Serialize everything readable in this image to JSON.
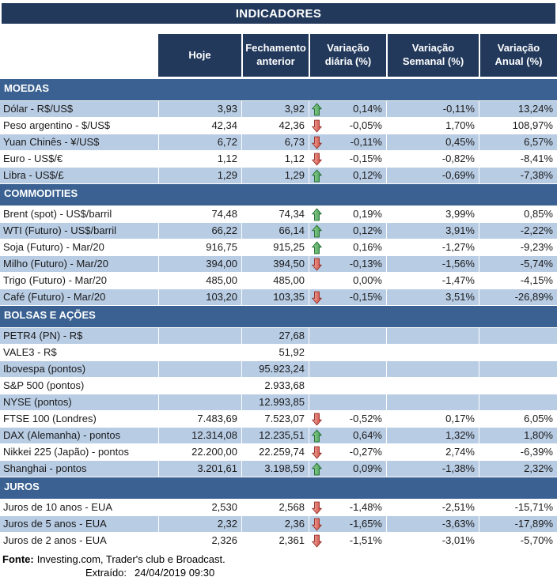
{
  "title": "INDICADORES",
  "columns": [
    "Hoje",
    "Fechamento anterior",
    "Variação diária (%)",
    "Variação Semanal (%)",
    "Variação Anual (%)"
  ],
  "colors": {
    "header_navy": "#22395C",
    "section_blue": "#3A6191",
    "row_shaded": "#B8CCE4",
    "text_dark": "#1A1A1A",
    "arrow_up_light": "#9BD49B",
    "arrow_up": "#3C9A4C",
    "arrow_up_border": "#1F6B30",
    "arrow_down_light": "#F2AFA8",
    "arrow_down": "#CC4437",
    "arrow_down_border": "#932F28"
  },
  "sections": [
    {
      "name": "MOEDAS",
      "first_row_shaded": true,
      "rows": [
        {
          "label": "Dólar - R$/US$",
          "hoje": "3,93",
          "fechamento": "3,92",
          "arrow": "up",
          "var_diaria": "0,14%",
          "var_semanal": "-0,11%",
          "var_anual": "13,24%"
        },
        {
          "label": "Peso argentino - $/US$",
          "hoje": "42,34",
          "fechamento": "42,36",
          "arrow": "down",
          "var_diaria": "-0,05%",
          "var_semanal": "1,70%",
          "var_anual": "108,97%"
        },
        {
          "label": "Yuan Chinês - ¥/US$",
          "hoje": "6,72",
          "fechamento": "6,73",
          "arrow": "down",
          "var_diaria": "-0,11%",
          "var_semanal": "0,45%",
          "var_anual": "6,57%"
        },
        {
          "label": "Euro - US$/€",
          "hoje": "1,12",
          "fechamento": "1,12",
          "arrow": "down",
          "var_diaria": "-0,15%",
          "var_semanal": "-0,82%",
          "var_anual": "-8,41%"
        },
        {
          "label": "Libra - US$/£",
          "hoje": "1,29",
          "fechamento": "1,29",
          "arrow": "up",
          "var_diaria": "0,12%",
          "var_semanal": "-0,69%",
          "var_anual": "-7,38%"
        }
      ]
    },
    {
      "name": "COMMODITIES",
      "first_row_shaded": false,
      "rows": [
        {
          "label": "Brent (spot) - US$/barril",
          "hoje": "74,48",
          "fechamento": "74,34",
          "arrow": "up",
          "var_diaria": "0,19%",
          "var_semanal": "3,99%",
          "var_anual": "0,85%"
        },
        {
          "label": "WTI (Futuro) - US$/barril",
          "hoje": "66,22",
          "fechamento": "66,14",
          "arrow": "up",
          "var_diaria": "0,12%",
          "var_semanal": "3,91%",
          "var_anual": "-2,22%"
        },
        {
          "label": "Soja (Futuro) - Mar/20",
          "hoje": "916,75",
          "fechamento": "915,25",
          "arrow": "up",
          "var_diaria": "0,16%",
          "var_semanal": "-1,27%",
          "var_anual": "-9,23%"
        },
        {
          "label": "Milho (Futuro) - Mar/20",
          "hoje": "394,00",
          "fechamento": "394,50",
          "arrow": "down",
          "var_diaria": "-0,13%",
          "var_semanal": "-1,56%",
          "var_anual": "-5,74%"
        },
        {
          "label": "Trigo (Futuro) - Mar/20",
          "hoje": "485,00",
          "fechamento": "485,00",
          "arrow": "",
          "var_diaria": "0,00%",
          "var_semanal": "-1,47%",
          "var_anual": "-4,15%"
        },
        {
          "label": "Café (Futuro) - Mar/20",
          "hoje": "103,20",
          "fechamento": "103,35",
          "arrow": "down",
          "var_diaria": "-0,15%",
          "var_semanal": "3,51%",
          "var_anual": "-26,89%"
        }
      ]
    },
    {
      "name": "BOLSAS E AÇÕES",
      "first_row_shaded": true,
      "rows": [
        {
          "label": "PETR4 (PN) - R$",
          "hoje": "",
          "fechamento": "27,68",
          "arrow": "",
          "var_diaria": "",
          "var_semanal": "",
          "var_anual": ""
        },
        {
          "label": "VALE3 - R$",
          "hoje": "",
          "fechamento": "51,92",
          "arrow": "",
          "var_diaria": "",
          "var_semanal": "",
          "var_anual": ""
        },
        {
          "label": "Ibovespa (pontos)",
          "hoje": "",
          "fechamento": "95.923,24",
          "arrow": "",
          "var_diaria": "",
          "var_semanal": "",
          "var_anual": ""
        },
        {
          "label": "S&P 500 (pontos)",
          "hoje": "",
          "fechamento": "2.933,68",
          "arrow": "",
          "var_diaria": "",
          "var_semanal": "",
          "var_anual": ""
        },
        {
          "label": "NYSE (pontos)",
          "hoje": "",
          "fechamento": "12.993,85",
          "arrow": "",
          "var_diaria": "",
          "var_semanal": "",
          "var_anual": ""
        },
        {
          "label": "FTSE 100 (Londres)",
          "hoje": "7.483,69",
          "fechamento": "7.523,07",
          "arrow": "down",
          "var_diaria": "-0,52%",
          "var_semanal": "0,17%",
          "var_anual": "6,05%"
        },
        {
          "label": "DAX (Alemanha) - pontos",
          "hoje": "12.314,08",
          "fechamento": "12.235,51",
          "arrow": "up",
          "var_diaria": "0,64%",
          "var_semanal": "1,32%",
          "var_anual": "1,80%"
        },
        {
          "label": "Nikkei 225 (Japão) - pontos",
          "hoje": "22.200,00",
          "fechamento": "22.259,74",
          "arrow": "down",
          "var_diaria": "-0,27%",
          "var_semanal": "2,74%",
          "var_anual": "-6,39%"
        },
        {
          "label": "Shanghai - pontos",
          "hoje": "3.201,61",
          "fechamento": "3.198,59",
          "arrow": "up",
          "var_diaria": "0,09%",
          "var_semanal": "-1,38%",
          "var_anual": "2,32%"
        }
      ]
    },
    {
      "name": "JUROS",
      "first_row_shaded": false,
      "rows": [
        {
          "label": "Juros de 10 anos - EUA",
          "hoje": "2,530",
          "fechamento": "2,568",
          "arrow": "down",
          "var_diaria": "-1,48%",
          "var_semanal": "-2,51%",
          "var_anual": "-15,71%"
        },
        {
          "label": "Juros de 5 anos - EUA",
          "hoje": "2,32",
          "fechamento": "2,36",
          "arrow": "down",
          "var_diaria": "-1,65%",
          "var_semanal": "-3,63%",
          "var_anual": "-17,89%"
        },
        {
          "label": "Juros de 2 anos - EUA",
          "hoje": "2,326",
          "fechamento": "2,361",
          "arrow": "down",
          "var_diaria": "-1,51%",
          "var_semanal": "-3,01%",
          "var_anual": "-5,70%"
        }
      ]
    }
  ],
  "footer": {
    "fonte_label": "Fonte:",
    "fonte_text": "Investing.com, Trader's club e Broadcast.",
    "extraido_label": "Extraído:",
    "extraido_value": "24/04/2019 09:30"
  }
}
